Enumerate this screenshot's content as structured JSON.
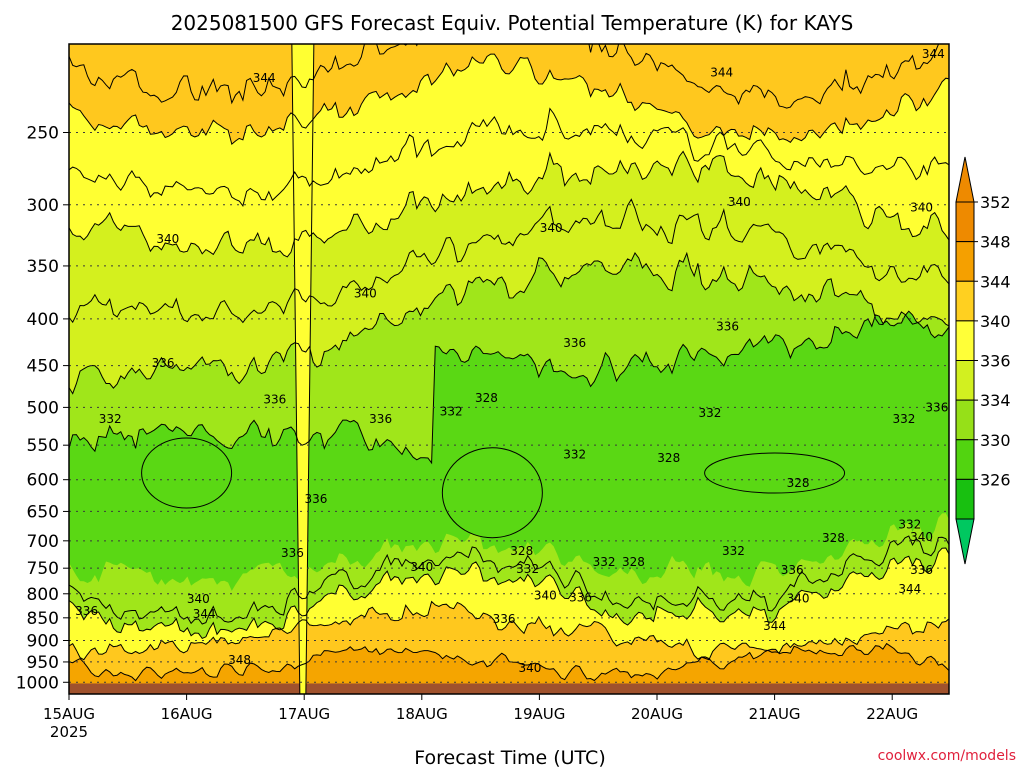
{
  "chart_data": {
    "type": "heatmap",
    "title": "2025081500 GFS Forecast Equiv. Potential Temperature (K) for KAYS",
    "xlabel": "Forecast Time (UTC)",
    "ylabel": "",
    "credit": "coolwx.com/models",
    "x_range_days": [
      0,
      7.55
    ],
    "x_ticks": [
      {
        "day": 0,
        "label": "15AUG",
        "sublabel": "2025"
      },
      {
        "day": 1,
        "label": "16AUG",
        "sublabel": ""
      },
      {
        "day": 2,
        "label": "17AUG",
        "sublabel": ""
      },
      {
        "day": 3,
        "label": "18AUG",
        "sublabel": ""
      },
      {
        "day": 4,
        "label": "19AUG",
        "sublabel": ""
      },
      {
        "day": 5,
        "label": "20AUG",
        "sublabel": ""
      },
      {
        "day": 6,
        "label": "21AUG",
        "sublabel": ""
      },
      {
        "day": 7,
        "label": "22AUG",
        "sublabel": ""
      }
    ],
    "y_axis": {
      "units": "hPa",
      "scale": "log",
      "reversed": true,
      "range": [
        1030,
        200
      ],
      "ticks": [
        250,
        300,
        350,
        400,
        450,
        500,
        550,
        600,
        650,
        700,
        750,
        800,
        850,
        900,
        950,
        1000
      ],
      "grid": "dotted"
    },
    "colorbar": {
      "labels": [
        352,
        348,
        344,
        340,
        336,
        334,
        330,
        326
      ],
      "colors": [
        "#ee8a00",
        "#f5a000",
        "#ffd020",
        "#ffff38",
        "#d2f020",
        "#96e018",
        "#52d410",
        "#18c010"
      ],
      "top_arrow_color": "#ee8a00",
      "bottom_arrow_color": "#00c860"
    },
    "layer_colors": {
      "348": "#f5a500",
      "344": "#ffc81e",
      "340": "#ffff32",
      "336": "#d4f01e",
      "334": "#a0e61a",
      "330": "#5ad814",
      "ground": "#a0522d"
    },
    "contour_labels": [
      {
        "day": 1.66,
        "p": 218,
        "text": "344"
      },
      {
        "day": 5.55,
        "p": 215,
        "text": "344"
      },
      {
        "day": 7.35,
        "p": 205,
        "text": "344"
      },
      {
        "day": 0.84,
        "p": 327,
        "text": "340"
      },
      {
        "day": 2.52,
        "p": 375,
        "text": "340"
      },
      {
        "day": 4.1,
        "p": 318,
        "text": "340"
      },
      {
        "day": 5.7,
        "p": 298,
        "text": "340"
      },
      {
        "day": 7.25,
        "p": 302,
        "text": "340"
      },
      {
        "day": 0.8,
        "p": 447,
        "text": "336"
      },
      {
        "day": 1.75,
        "p": 490,
        "text": "336"
      },
      {
        "day": 2.65,
        "p": 515,
        "text": "336"
      },
      {
        "day": 5.6,
        "p": 408,
        "text": "336"
      },
      {
        "day": 4.3,
        "p": 425,
        "text": "336"
      },
      {
        "day": 0.35,
        "p": 515,
        "text": "332"
      },
      {
        "day": 3.25,
        "p": 505,
        "text": "332"
      },
      {
        "day": 5.45,
        "p": 507,
        "text": "332"
      },
      {
        "day": 3.55,
        "p": 488,
        "text": "328"
      },
      {
        "day": 4.3,
        "p": 563,
        "text": "332"
      },
      {
        "day": 5.1,
        "p": 568,
        "text": "328"
      },
      {
        "day": 6.2,
        "p": 605,
        "text": "328"
      },
      {
        "day": 7.1,
        "p": 515,
        "text": "332"
      },
      {
        "day": 7.38,
        "p": 500,
        "text": "336"
      },
      {
        "day": 2.1,
        "p": 630,
        "text": "336"
      },
      {
        "day": 1.9,
        "p": 722,
        "text": "336"
      },
      {
        "day": 3.0,
        "p": 748,
        "text": "340"
      },
      {
        "day": 3.85,
        "p": 718,
        "text": "328"
      },
      {
        "day": 3.9,
        "p": 752,
        "text": "332"
      },
      {
        "day": 4.55,
        "p": 738,
        "text": "332"
      },
      {
        "day": 4.8,
        "p": 738,
        "text": "328"
      },
      {
        "day": 5.65,
        "p": 718,
        "text": "332"
      },
      {
        "day": 6.5,
        "p": 695,
        "text": "328"
      },
      {
        "day": 7.15,
        "p": 672,
        "text": "332"
      },
      {
        "day": 7.25,
        "p": 693,
        "text": "340"
      },
      {
        "day": 7.25,
        "p": 753,
        "text": "336"
      },
      {
        "day": 6.15,
        "p": 753,
        "text": "336"
      },
      {
        "day": 6.2,
        "p": 810,
        "text": "340"
      },
      {
        "day": 6.0,
        "p": 868,
        "text": "344"
      },
      {
        "day": 7.15,
        "p": 790,
        "text": "344"
      },
      {
        "day": 4.05,
        "p": 803,
        "text": "340"
      },
      {
        "day": 4.35,
        "p": 808,
        "text": "336"
      },
      {
        "day": 3.7,
        "p": 852,
        "text": "336"
      },
      {
        "day": 1.1,
        "p": 811,
        "text": "340"
      },
      {
        "day": 1.15,
        "p": 842,
        "text": "344"
      },
      {
        "day": 0.15,
        "p": 835,
        "text": "336"
      },
      {
        "day": 1.45,
        "p": 945,
        "text": "348"
      },
      {
        "day": 3.92,
        "p": 965,
        "text": "340"
      }
    ]
  }
}
